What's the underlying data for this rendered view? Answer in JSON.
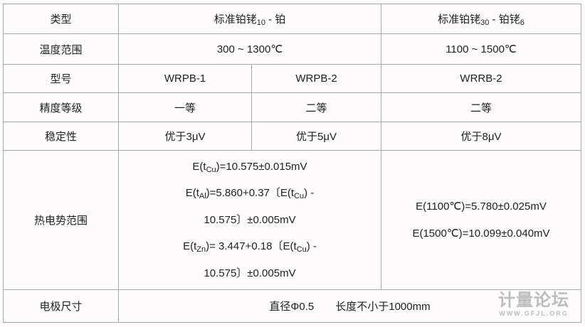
{
  "rows": {
    "type": {
      "label": "类型",
      "a": "标准铂铑",
      "a_sub": "10",
      "a_tail": " - 铂",
      "b": "标准铂铑",
      "b_sub": "30",
      "b_mid": " - 铂铑",
      "b_sub2": "6"
    },
    "range": {
      "label": "温度范围",
      "a": "300 ~ 1300℃",
      "b": "1100 ~ 1500℃"
    },
    "model": {
      "label": "型号",
      "a": "WRPB-1",
      "b": "WRPB-2",
      "c": "WRRB-2"
    },
    "grade": {
      "label": "精度等级",
      "a": "一等",
      "b": "二等",
      "c": "二等"
    },
    "stability": {
      "label": "稳定性",
      "a": "优于3μV",
      "b": "优于5μV",
      "c": "优于8μV"
    },
    "emf": {
      "label": "热电势范围",
      "l1a": "E(t",
      "l1s": "Cu",
      "l1b": ")=10.575±0.015mV",
      "l2a": "E(t",
      "l2s": "Al",
      "l2b": ")=5.860+0.37〔E(t",
      "l2s2": "Cu",
      "l2c": ") -",
      "l3": "10.575〕±0.005mV",
      "l4a": "E(t",
      "l4s": "Zn",
      "l4b": ")= 3.447+0.18〔E(t",
      "l4s2": "Cu",
      "l4c": ") -",
      "l5": "10.575〕±0.005mV",
      "r1": "E(1100℃)=5.780±0.025mV",
      "r2": "E(1500℃)=10.099±0.040mV"
    },
    "electrode": {
      "label": "电极尺寸",
      "value": "直径Φ0.5　　长度不小于1000mm"
    }
  },
  "watermark": {
    "title": "计量论坛",
    "url": "WWW.GFJL.ORG"
  }
}
